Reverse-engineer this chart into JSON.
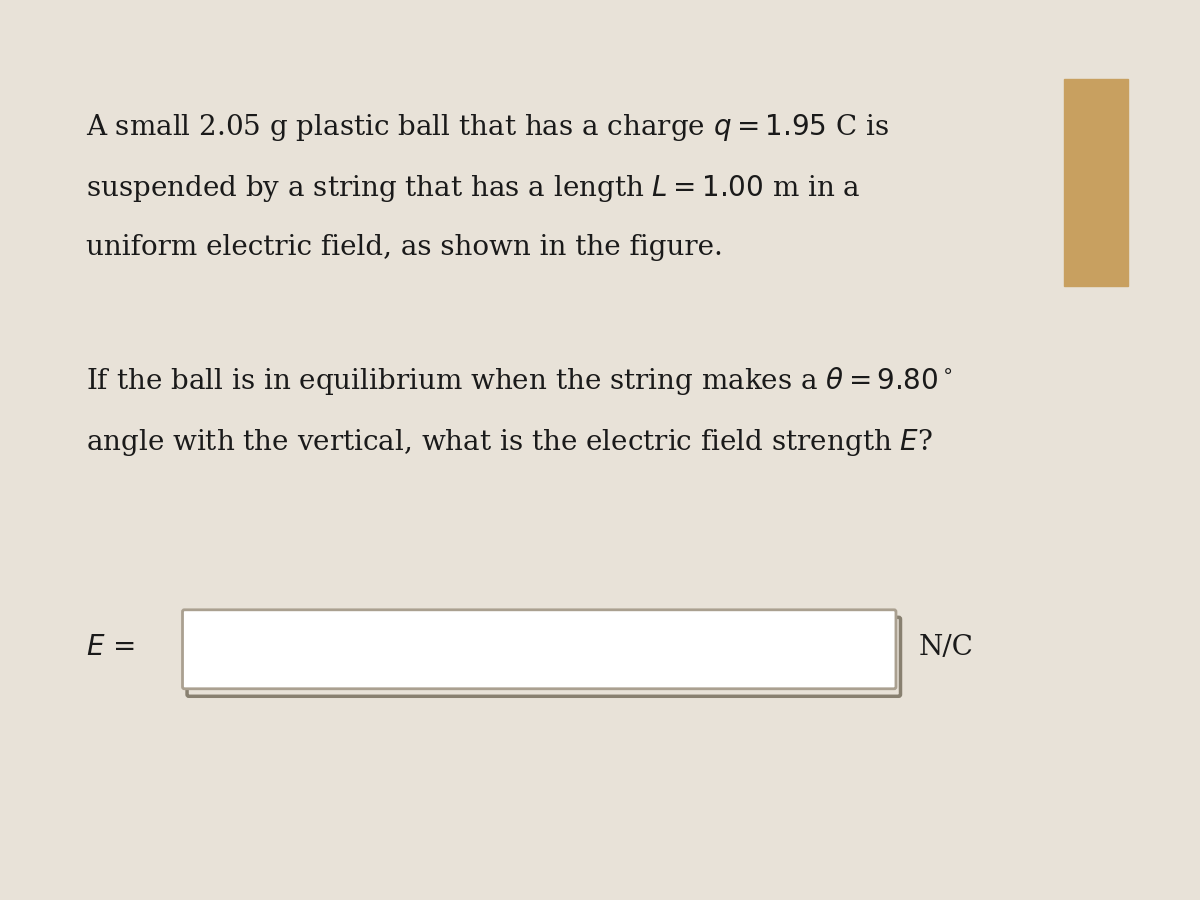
{
  "bg_color": "#e8e2d8",
  "card_color": "#f2ede6",
  "text_color": "#1a1a1a",
  "accent_color": "#c8a060",
  "font_size_main": 20,
  "line1": "A small 2.05 g plastic ball that has a charge $q = 1.95$ C is",
  "line2": "suspended by a string that has a length $L = 1.00$ m in a",
  "line3": "uniform electric field, as shown in the figure.",
  "line4": "If the ball is in equilibrium when the string makes a $\\theta = 9.80^\\circ$",
  "line5": "angle with the vertical, what is the electric field strength $E$?",
  "label_E": "$E$ =",
  "label_unit": "N/C",
  "box_edge_color": "#aaa090",
  "box_shadow_color": "#888070",
  "box_face_color": "#f2ede6"
}
